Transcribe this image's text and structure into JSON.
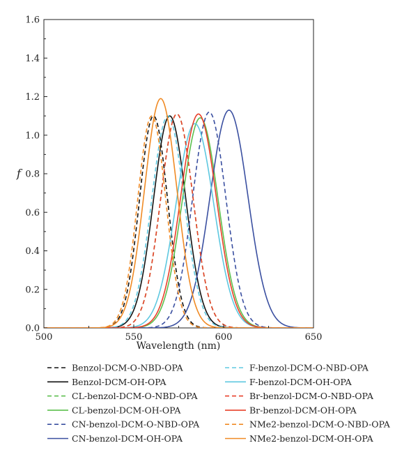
{
  "chart_data": {
    "type": "line",
    "xlabel": "Wavelength (nm)",
    "ylabel": "f",
    "xlim": [
      500,
      650
    ],
    "ylim": [
      0,
      1.6
    ],
    "xticks": [
      "500",
      "550",
      "600",
      "650"
    ],
    "yticks": [
      "0.0",
      "0.2",
      "0.4",
      "0.6",
      "0.8",
      "1.0",
      "1.2",
      "1.4",
      "1.6"
    ],
    "grid": false,
    "legend_position": "bottom",
    "series": [
      {
        "name": "Benzol-DCM-O-NBD-OPA",
        "color": "#111111",
        "dash": true,
        "center": 561,
        "peak": 1.1,
        "sigma": 7.8
      },
      {
        "name": "Benzol-DCM-OH-OPA",
        "color": "#111111",
        "dash": false,
        "center": 570,
        "peak": 1.1,
        "sigma": 9.0
      },
      {
        "name": "CL-benzol-DCM-O-NBD-OPA",
        "color": "#5cbf4d",
        "dash": true,
        "center": 574,
        "peak": 1.11,
        "sigma": 9.0
      },
      {
        "name": "CL-benzol-DCM-OH-OPA",
        "color": "#5cbf4d",
        "dash": false,
        "center": 587,
        "peak": 1.09,
        "sigma": 10.0
      },
      {
        "name": "CN-benzol-DCM-O-NBD-OPA",
        "color": "#3a4fa0",
        "dash": true,
        "center": 592,
        "peak": 1.12,
        "sigma": 9.2
      },
      {
        "name": "CN-benzol-DCM-OH-OPA",
        "color": "#3a4fa0",
        "dash": false,
        "center": 603,
        "peak": 1.13,
        "sigma": 10.5
      },
      {
        "name": "F-benzol-DCM-O-NBD-OPA",
        "color": "#5ec8e0",
        "dash": true,
        "center": 569,
        "peak": 1.1,
        "sigma": 9.0
      },
      {
        "name": "F-benzol-DCM-OH-OPA",
        "color": "#5ec8e0",
        "dash": false,
        "center": 584,
        "peak": 1.06,
        "sigma": 10.5
      },
      {
        "name": "Br-benzol-DCM-O-NBD-OPA",
        "color": "#e8402a",
        "dash": true,
        "center": 574,
        "peak": 1.11,
        "sigma": 9.0
      },
      {
        "name": "Br-benzol-DCM-OH-OPA",
        "color": "#e8402a",
        "dash": false,
        "center": 586,
        "peak": 1.11,
        "sigma": 10.0
      },
      {
        "name": "NMe2-benzol-DCM-O-NBD-OPA",
        "color": "#f08a24",
        "dash": true,
        "center": 560,
        "peak": 1.1,
        "sigma": 7.8
      },
      {
        "name": "NMe2-benzol-DCM-OH-OPA",
        "color": "#f08a24",
        "dash": false,
        "center": 565,
        "peak": 1.19,
        "sigma": 9.0
      }
    ]
  }
}
